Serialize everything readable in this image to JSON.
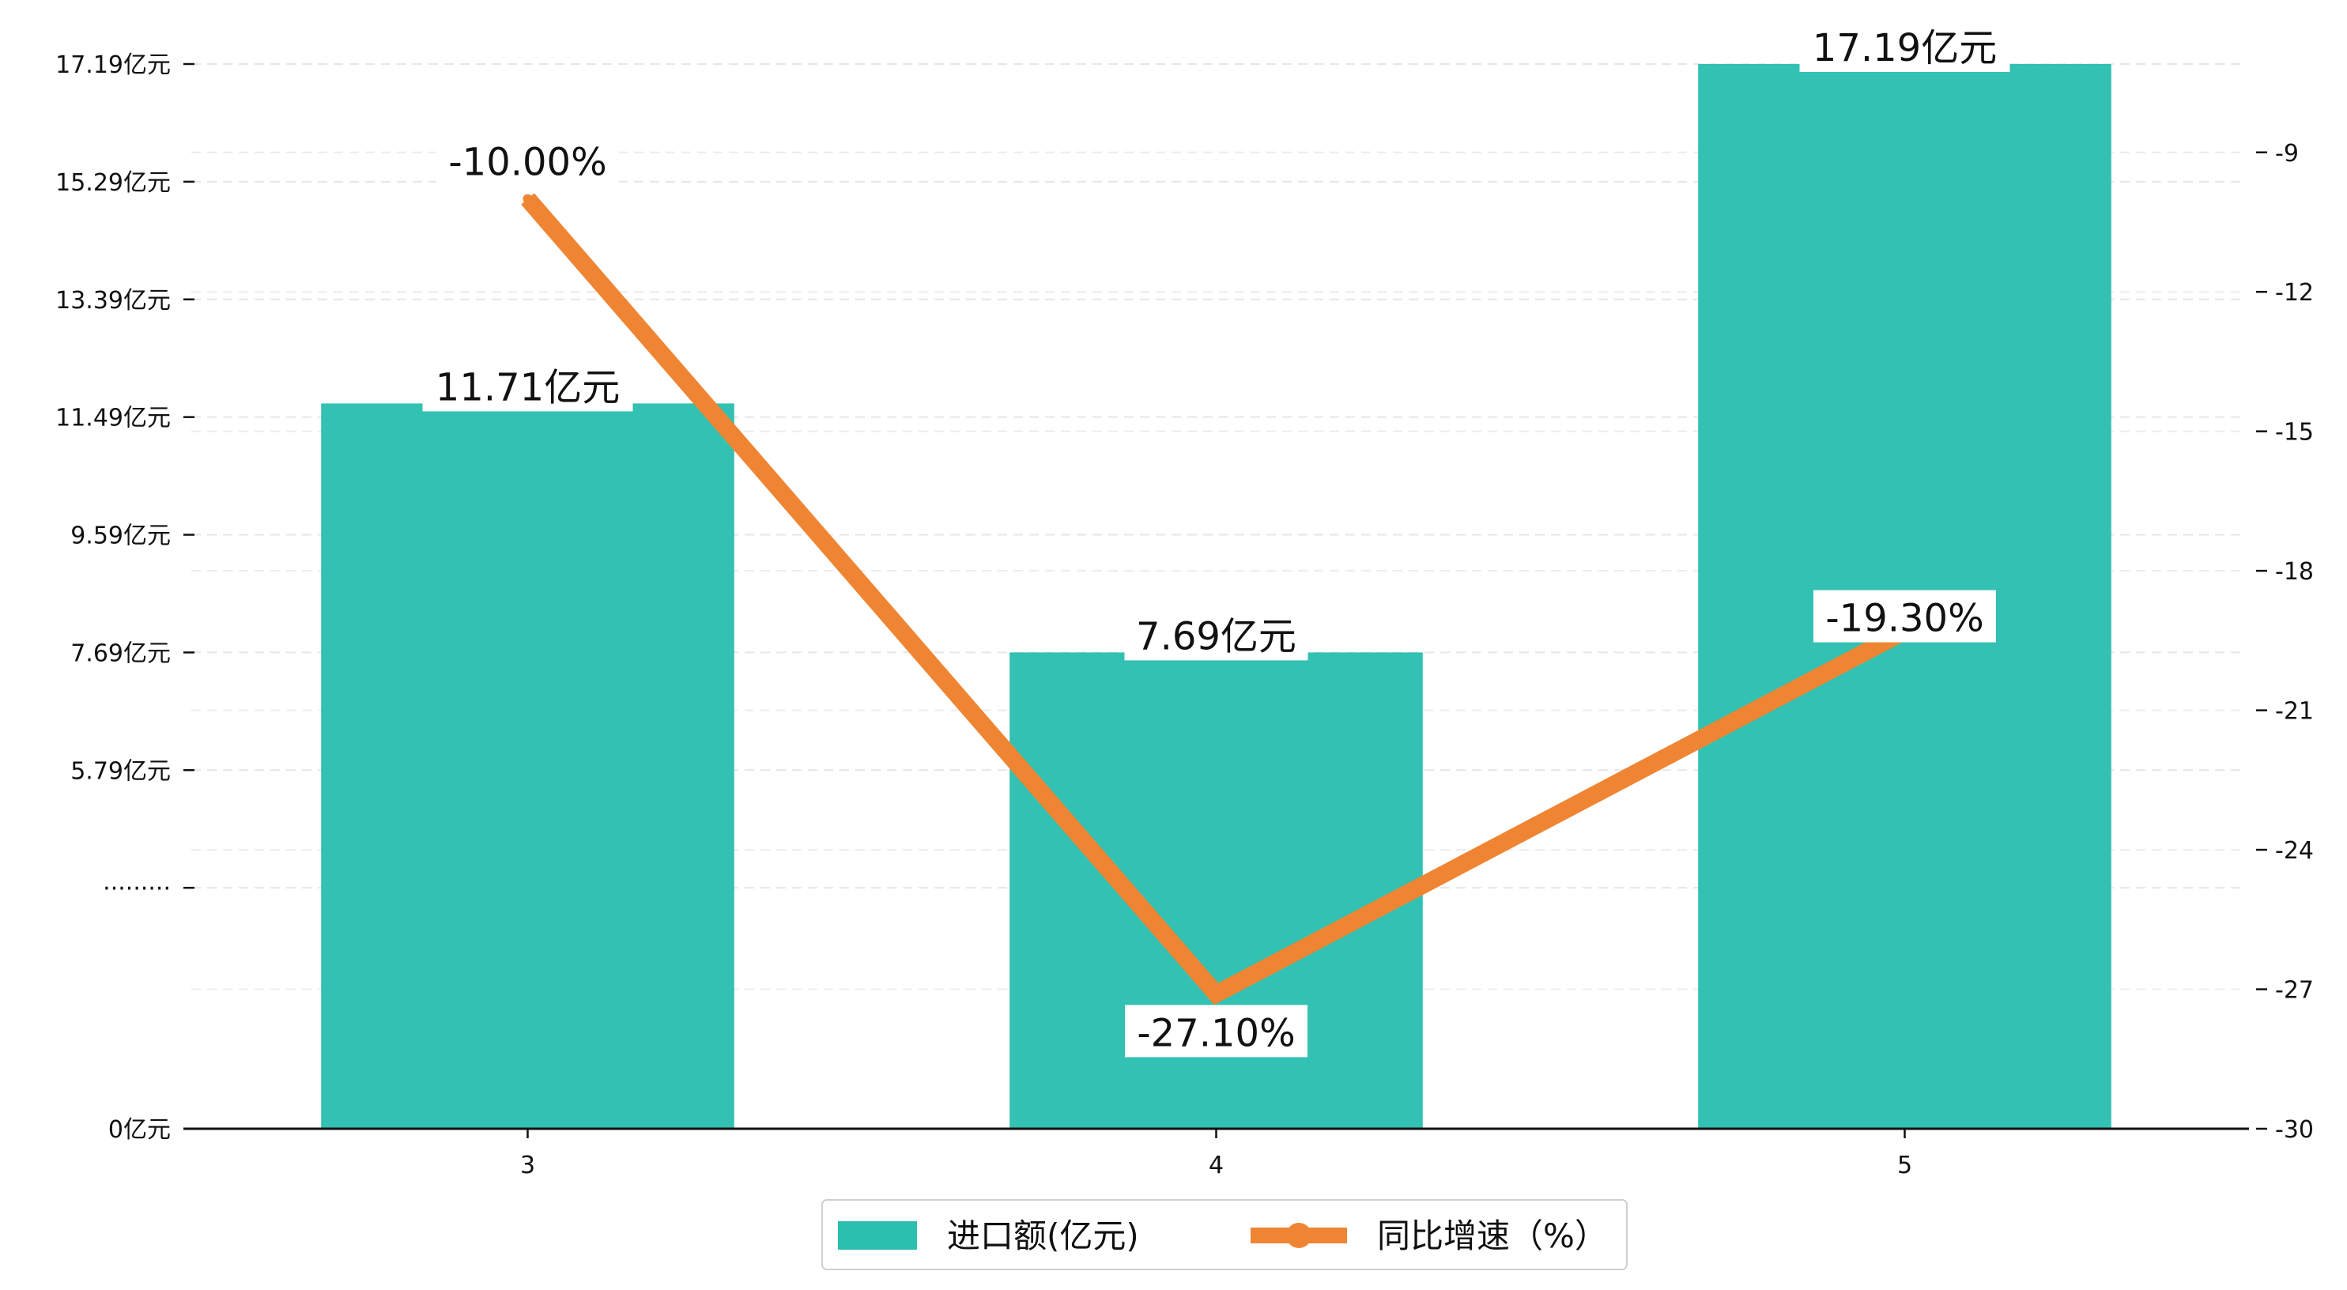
{
  "chart_data": {
    "type": "bar",
    "categories": [
      "3",
      "4",
      "5"
    ],
    "series": [
      {
        "name": "进口额(亿元)",
        "type": "bar",
        "axis": "left",
        "values": [
          11.71,
          7.69,
          17.19
        ],
        "labels": [
          "11.71亿元",
          "7.69亿元",
          "17.19亿元"
        ],
        "color": "#2bbfb0"
      },
      {
        "name": "同比增速（%）",
        "type": "line",
        "axis": "right",
        "values": [
          -10.0,
          -27.1,
          -19.3
        ],
        "labels": [
          "-10.00%",
          "-27.10%",
          "-19.30%"
        ],
        "color": "#ef8533"
      }
    ],
    "y_left": {
      "ticks": [
        0,
        3.89,
        5.79,
        7.69,
        9.59,
        11.49,
        13.39,
        15.29,
        17.19
      ],
      "tick_labels": [
        "0亿元",
        "·········",
        "5.79亿元",
        "7.69亿元",
        "9.59亿元",
        "11.49亿元",
        "13.39亿元",
        "15.29亿元",
        "17.19亿元"
      ],
      "range": [
        0,
        17.19
      ]
    },
    "y_right": {
      "ticks": [
        -30,
        -27,
        -24,
        -21,
        -18,
        -15,
        -12,
        -9
      ],
      "tick_labels": [
        "-30",
        "-27",
        "-24",
        "-21",
        "-18",
        "-15",
        "-12",
        "-9"
      ],
      "range": [
        -30,
        -7.1
      ]
    },
    "grid": true,
    "legend_position": "bottom-center",
    "legend": [
      "进口额(亿元)",
      "同比增速（%）"
    ]
  }
}
